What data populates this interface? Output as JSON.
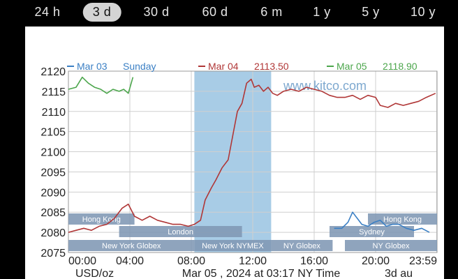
{
  "tabs": [
    {
      "label": "24 h",
      "active": false
    },
    {
      "label": "3 d",
      "active": true
    },
    {
      "label": "30 d",
      "active": false
    },
    {
      "label": "60 d",
      "active": false
    },
    {
      "label": "6 m",
      "active": false
    },
    {
      "label": "1 y",
      "active": false
    },
    {
      "label": "5 y",
      "active": false
    },
    {
      "label": "10 y",
      "active": false
    }
  ],
  "chart_data": {
    "type": "line",
    "ylim": [
      2075,
      2120
    ],
    "yticks": [
      2075,
      2080,
      2085,
      2090,
      2095,
      2100,
      2105,
      2110,
      2115,
      2120
    ],
    "xlim": [
      0,
      24
    ],
    "xticks": [
      {
        "value": 0,
        "label": "00:00"
      },
      {
        "value": 4,
        "label": "04:00"
      },
      {
        "value": 8,
        "label": "08:00"
      },
      {
        "value": 12,
        "label": "12:00"
      },
      {
        "value": 16,
        "label": "16:00"
      },
      {
        "value": 20,
        "label": "20:00"
      },
      {
        "value": 23.98,
        "label": "23:59"
      }
    ],
    "watermark": "www.kitco.com",
    "units_label": "USD/oz",
    "footer": "Mar 05 , 2024 at 03:17 NY Time",
    "footer_right": "3d au",
    "highlight": {
      "from": 8.2,
      "to": 13.2,
      "color": "#a8cce6"
    },
    "sessions": [
      {
        "label": "Hong Kong",
        "from": 0,
        "to": 4.3,
        "row": 0
      },
      {
        "label": "Hong Kong",
        "from": 19.5,
        "to": 24,
        "row": 0
      },
      {
        "label": "London",
        "from": 3.3,
        "to": 11.3,
        "row": 1
      },
      {
        "label": "Sydney",
        "from": 17,
        "to": 22.5,
        "row": 1
      },
      {
        "label": "New York Globex",
        "from": 0,
        "to": 8.2,
        "row": 2
      },
      {
        "label": "New York NYMEX",
        "from": 8.2,
        "to": 13.2,
        "row": 2
      },
      {
        "label": "NY Globex",
        "from": 13.2,
        "to": 17.2,
        "row": 2
      },
      {
        "label": "NY Globex",
        "from": 18,
        "to": 24,
        "row": 2
      }
    ],
    "series": [
      {
        "name": "Mar 03",
        "value_label": "Sunday",
        "color": "#3a7fc4",
        "points": [
          [
            17.3,
            2081
          ],
          [
            17.8,
            2081
          ],
          [
            18.2,
            2082.5
          ],
          [
            18.5,
            2085
          ],
          [
            18.8,
            2083.5
          ],
          [
            19.1,
            2082
          ],
          [
            19.5,
            2081.5
          ],
          [
            19.9,
            2082.5
          ],
          [
            20.3,
            2083
          ],
          [
            20.7,
            2081.5
          ],
          [
            21.1,
            2082
          ],
          [
            21.5,
            2082
          ],
          [
            22,
            2081
          ],
          [
            22.5,
            2080.5
          ],
          [
            23,
            2081
          ],
          [
            23.5,
            2080
          ]
        ]
      },
      {
        "name": "Mar 04",
        "value_label": "2113.50",
        "color": "#b03636",
        "points": [
          [
            0,
            2080
          ],
          [
            0.5,
            2080.5
          ],
          [
            1,
            2081
          ],
          [
            1.5,
            2080.5
          ],
          [
            2,
            2081.5
          ],
          [
            2.5,
            2082
          ],
          [
            3,
            2083.5
          ],
          [
            3.5,
            2086
          ],
          [
            3.9,
            2087
          ],
          [
            4.3,
            2084
          ],
          [
            4.8,
            2083
          ],
          [
            5.3,
            2084
          ],
          [
            5.8,
            2083
          ],
          [
            6.3,
            2082.5
          ],
          [
            6.8,
            2082
          ],
          [
            7.3,
            2082
          ],
          [
            7.8,
            2081.5
          ],
          [
            8.2,
            2082
          ],
          [
            8.6,
            2083
          ],
          [
            8.9,
            2088
          ],
          [
            9.3,
            2091
          ],
          [
            9.6,
            2093
          ],
          [
            10,
            2096
          ],
          [
            10.4,
            2098
          ],
          [
            10.7,
            2104
          ],
          [
            11,
            2110
          ],
          [
            11.3,
            2112
          ],
          [
            11.6,
            2117
          ],
          [
            11.9,
            2118
          ],
          [
            12.1,
            2116
          ],
          [
            12.4,
            2116.5
          ],
          [
            12.7,
            2115
          ],
          [
            13,
            2116
          ],
          [
            13.3,
            2114.5
          ],
          [
            13.6,
            2114
          ],
          [
            14,
            2115
          ],
          [
            14.5,
            2115.5
          ],
          [
            15,
            2115
          ],
          [
            15.5,
            2116
          ],
          [
            16,
            2115.5
          ],
          [
            16.5,
            2115
          ],
          [
            17,
            2114
          ],
          [
            17.5,
            2113.5
          ],
          [
            18,
            2113.5
          ],
          [
            18.5,
            2114
          ],
          [
            19,
            2113
          ],
          [
            19.5,
            2114
          ],
          [
            20,
            2113.5
          ],
          [
            20.3,
            2111.5
          ],
          [
            20.8,
            2111
          ],
          [
            21.3,
            2112
          ],
          [
            21.8,
            2111.5
          ],
          [
            22.3,
            2112
          ],
          [
            22.8,
            2112.5
          ],
          [
            23.3,
            2113.5
          ],
          [
            23.9,
            2114.5
          ]
        ]
      },
      {
        "name": "Mar 05",
        "value_label": "2118.90",
        "color": "#4ca64c",
        "points": [
          [
            0,
            2115.5
          ],
          [
            0.5,
            2116
          ],
          [
            0.9,
            2118.5
          ],
          [
            1.3,
            2117
          ],
          [
            1.7,
            2116
          ],
          [
            2.1,
            2115.5
          ],
          [
            2.5,
            2114.5
          ],
          [
            2.9,
            2115.5
          ],
          [
            3.3,
            2115
          ],
          [
            3.6,
            2115.5
          ],
          [
            3.9,
            2114.5
          ],
          [
            4.2,
            2118.5
          ]
        ]
      }
    ]
  }
}
